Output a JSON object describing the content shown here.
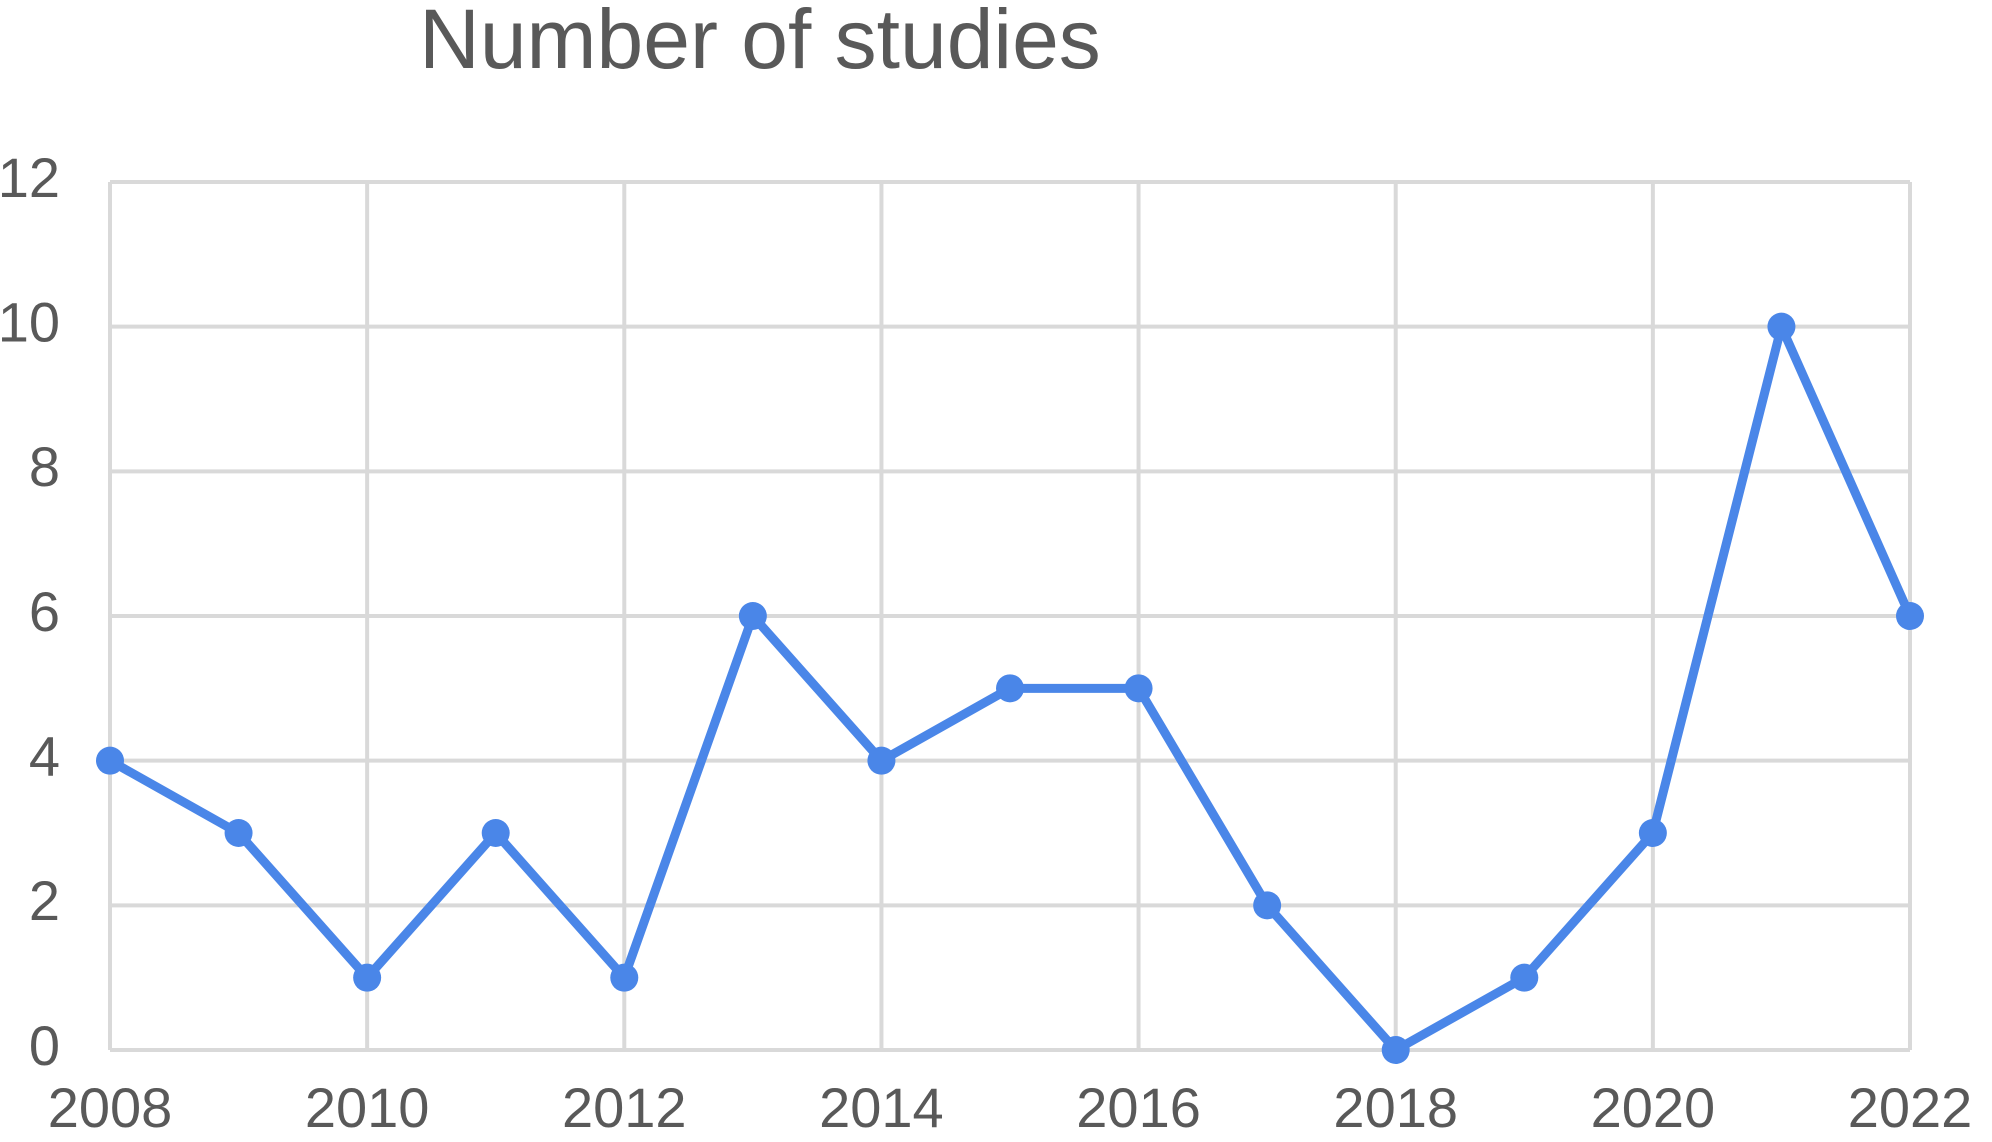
{
  "chart_data": {
    "type": "line",
    "title": "Number of studies",
    "x": [
      2008,
      2009,
      2010,
      2011,
      2012,
      2013,
      2014,
      2015,
      2016,
      2017,
      2018,
      2019,
      2020,
      2021,
      2022
    ],
    "series": [
      {
        "name": "Number of studies",
        "color": "#4a86e8",
        "values": [
          4,
          3,
          1,
          3,
          1,
          6,
          4,
          5,
          5,
          2,
          0,
          1,
          3,
          10,
          6
        ]
      }
    ],
    "xlim": [
      2008,
      2022
    ],
    "xticks": [
      2008,
      2010,
      2012,
      2014,
      2016,
      2018,
      2020,
      2022
    ],
    "ylim": [
      0,
      12
    ],
    "yticks": [
      0,
      2,
      4,
      6,
      8,
      10,
      12
    ],
    "grid": true
  }
}
